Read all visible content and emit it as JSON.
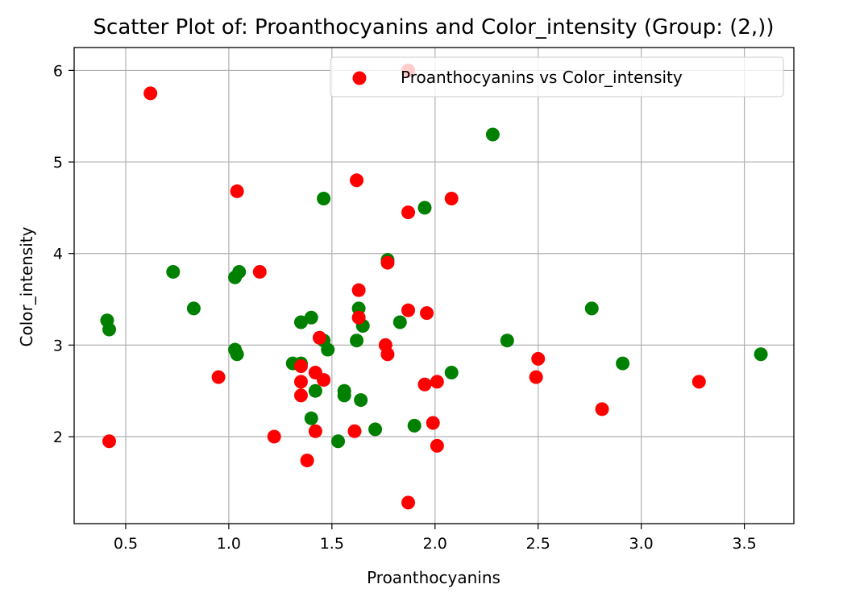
{
  "chart_data": {
    "type": "scatter",
    "title": "Scatter Plot of: Proanthocyanins and Color_intensity (Group: (2,))",
    "xlabel": "Proanthocyanins",
    "ylabel": "Color_intensity",
    "xlim": [
      0.25,
      3.74
    ],
    "ylim": [
      1.05,
      6.25
    ],
    "xticks": [
      0.5,
      1.0,
      1.5,
      2.0,
      2.5,
      3.0,
      3.5
    ],
    "xtick_labels": [
      "0.5",
      "1.0",
      "1.5",
      "2.0",
      "2.5",
      "3.0",
      "3.5"
    ],
    "yticks": [
      2,
      3,
      4,
      5,
      6
    ],
    "ytick_labels": [
      "2",
      "3",
      "4",
      "5",
      "6"
    ],
    "grid": true,
    "legend_placement": "top-right",
    "legend_label": "Proanthocyanins vs Color_intensity",
    "legend_color": "#ff0000",
    "series": [
      {
        "color": "#008000",
        "x": [
          0.41,
          0.42,
          0.73,
          0.83,
          1.03,
          1.05,
          1.03,
          1.04,
          1.31,
          1.35,
          1.35,
          1.4,
          1.4,
          1.42,
          1.46,
          1.46,
          1.48,
          1.53,
          1.56,
          1.56,
          1.62,
          1.63,
          1.64,
          1.65,
          1.71,
          1.77,
          1.83,
          1.9,
          1.95,
          2.08,
          2.28,
          2.35,
          2.76,
          2.91,
          3.58
        ],
        "y": [
          3.27,
          3.17,
          3.8,
          3.4,
          3.74,
          3.8,
          2.95,
          2.9,
          2.8,
          3.25,
          2.8,
          3.3,
          2.2,
          2.5,
          4.6,
          3.05,
          2.95,
          1.95,
          2.5,
          2.45,
          3.05,
          3.4,
          2.4,
          3.21,
          2.08,
          3.93,
          3.25,
          2.12,
          4.5,
          2.7,
          5.3,
          3.05,
          3.4,
          2.8,
          2.9
        ]
      },
      {
        "color": "#ff0000",
        "x": [
          0.42,
          0.62,
          0.95,
          1.04,
          1.15,
          1.22,
          1.35,
          1.35,
          1.35,
          1.38,
          1.42,
          1.42,
          1.44,
          1.46,
          1.61,
          1.62,
          1.63,
          1.63,
          1.76,
          1.77,
          1.77,
          1.87,
          1.87,
          1.87,
          1.87,
          1.95,
          1.96,
          1.99,
          2.01,
          2.01,
          2.08,
          2.49,
          2.5,
          2.81,
          3.28
        ],
        "y": [
          1.95,
          5.75,
          2.65,
          4.68,
          3.8,
          2.0,
          2.77,
          2.6,
          2.45,
          1.74,
          2.7,
          2.06,
          3.08,
          2.62,
          2.06,
          4.8,
          3.6,
          3.3,
          3.0,
          3.9,
          2.9,
          6.0,
          4.45,
          3.38,
          1.28,
          2.57,
          3.35,
          2.15,
          2.6,
          1.9,
          4.6,
          2.65,
          2.85,
          2.3,
          2.6
        ]
      }
    ]
  }
}
